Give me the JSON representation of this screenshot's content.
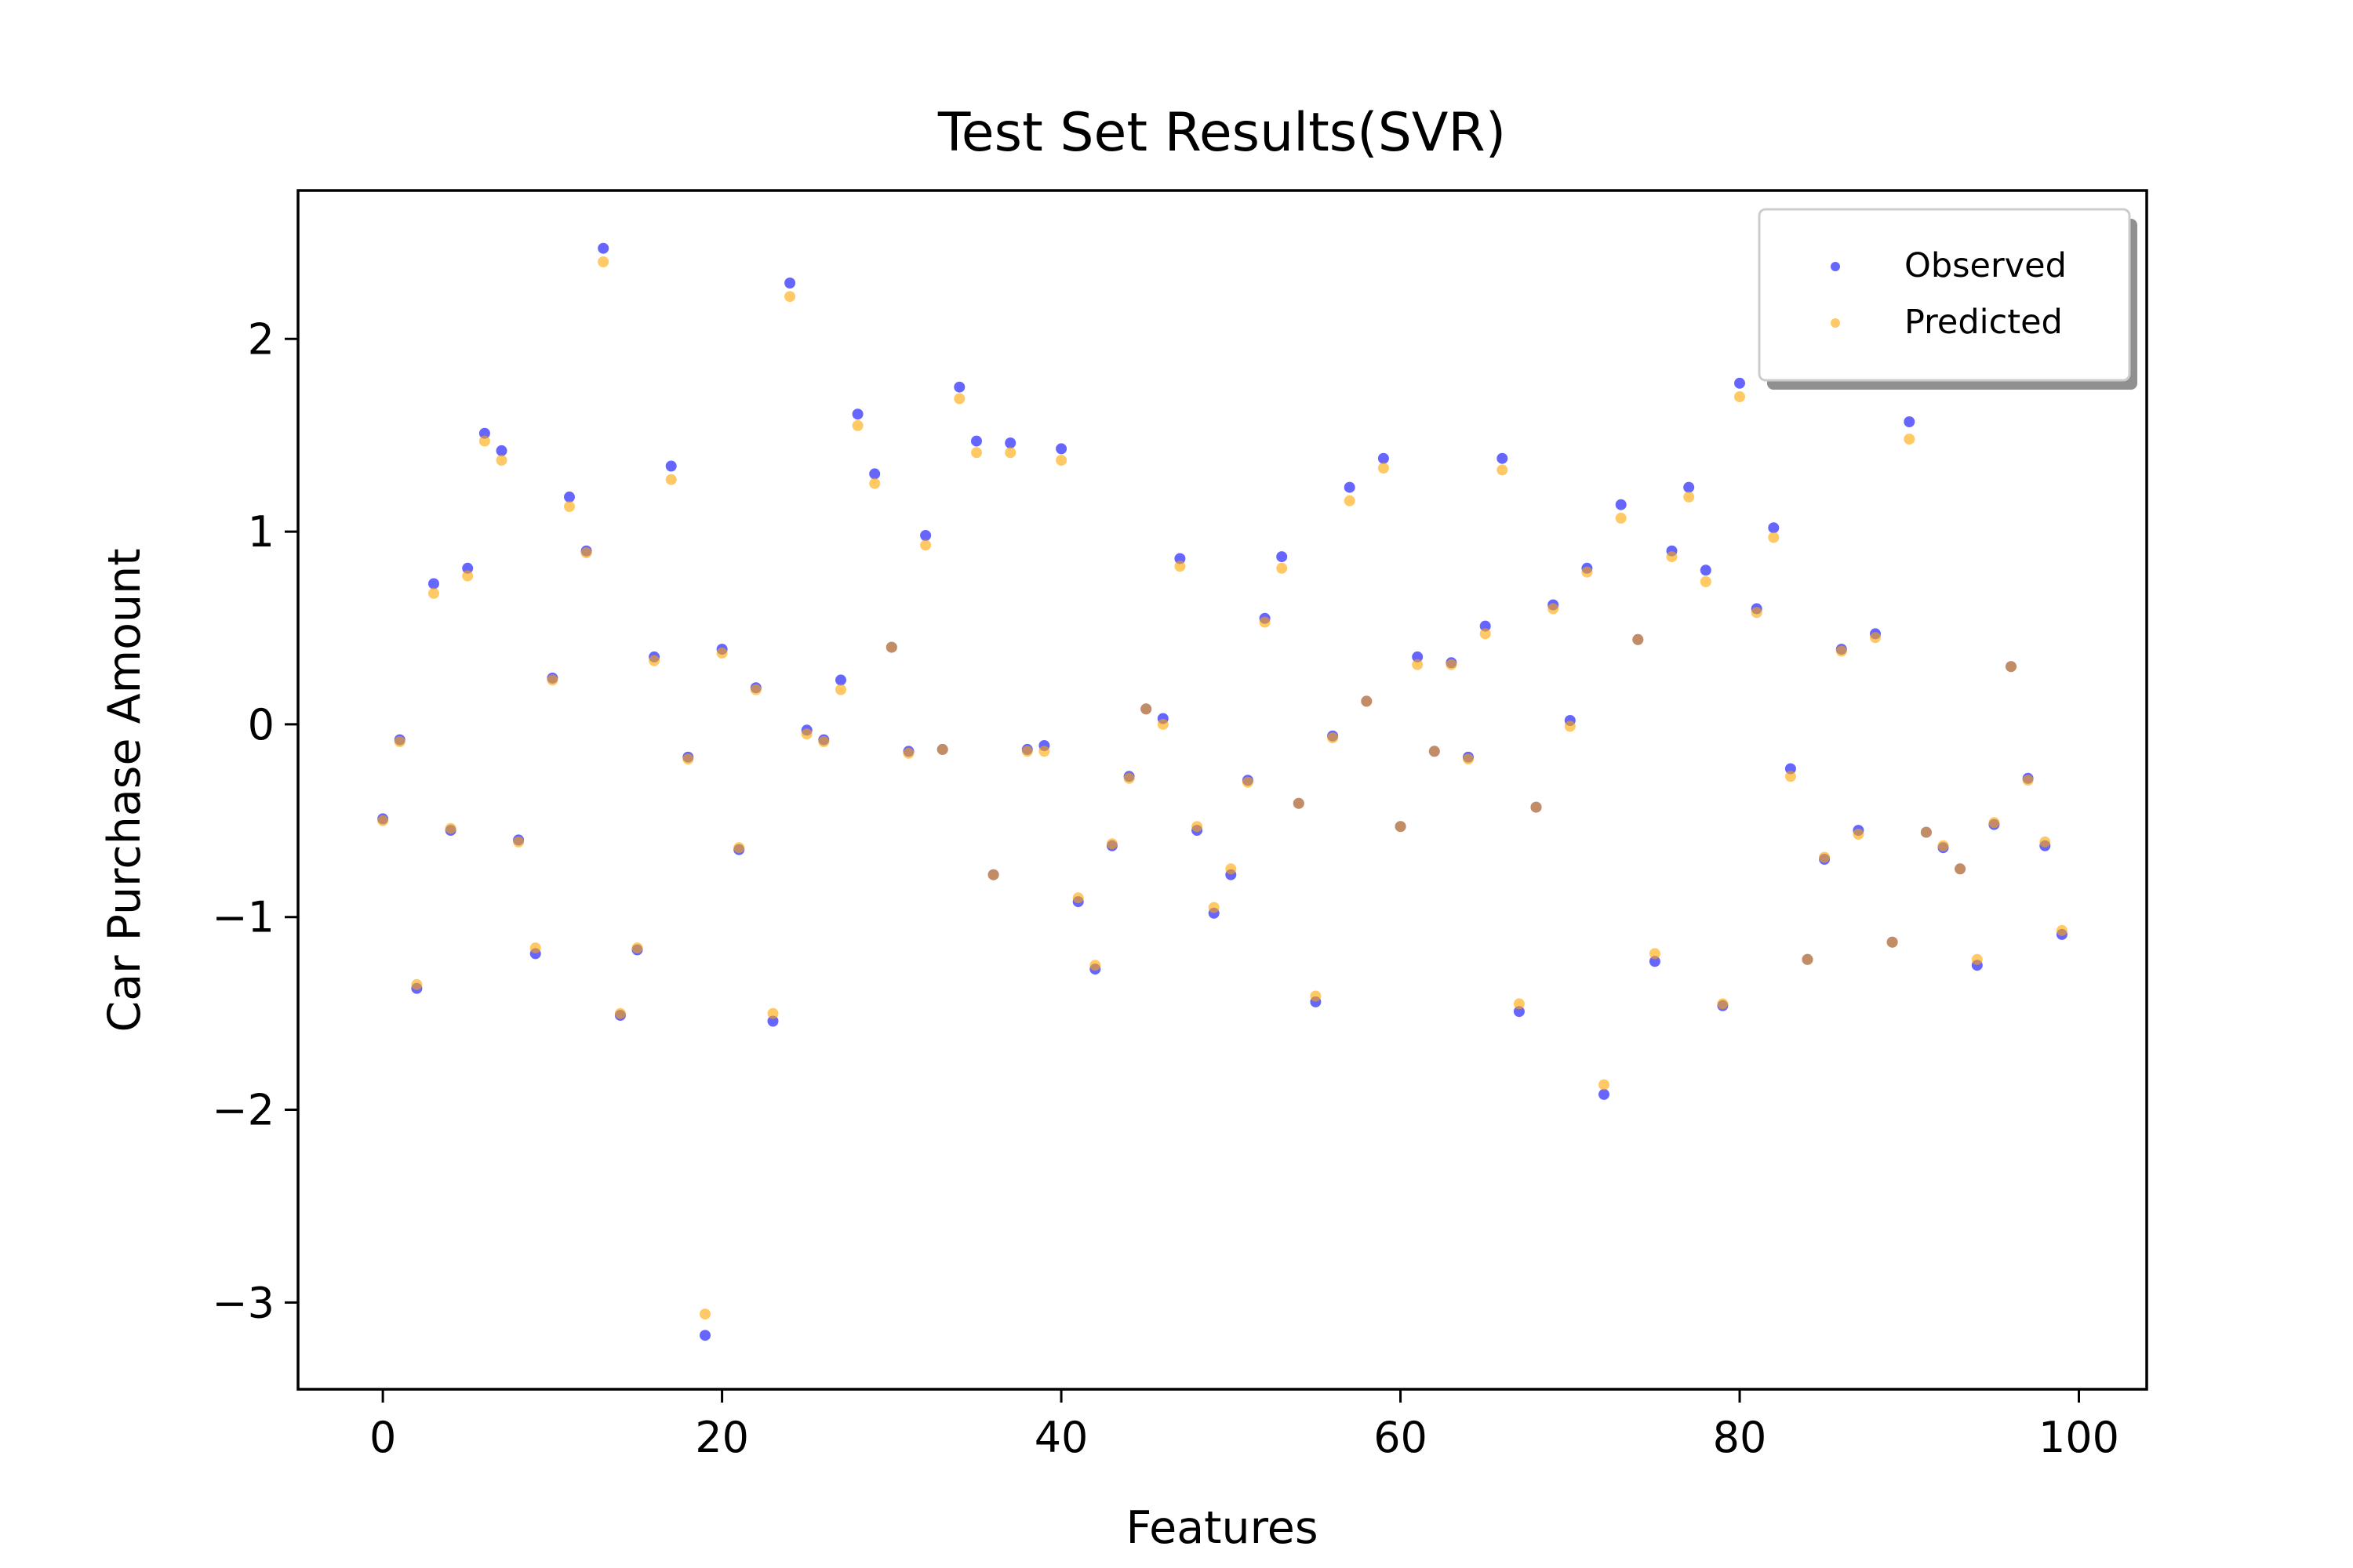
{
  "chart_data": {
    "type": "scatter",
    "title": "Test Set Results(SVR)",
    "xlabel": "Features",
    "ylabel": "Car Purchase Amount",
    "xlim": [
      -5,
      104
    ],
    "ylim": [
      -3.45,
      2.77
    ],
    "xticks": [
      0,
      20,
      40,
      60,
      80,
      100
    ],
    "xtick_labels": [
      "0",
      "20",
      "40",
      "60",
      "80",
      "100"
    ],
    "yticks": [
      -3,
      -2,
      -1,
      0,
      1,
      2
    ],
    "ytick_labels": [
      "−3",
      "−2",
      "−1",
      "0",
      "1",
      "2"
    ],
    "grid": false,
    "legend_position": "top-right",
    "x": [
      0,
      1,
      2,
      3,
      4,
      5,
      6,
      7,
      8,
      9,
      10,
      11,
      12,
      13,
      14,
      15,
      16,
      17,
      18,
      19,
      20,
      21,
      22,
      23,
      24,
      25,
      26,
      27,
      28,
      29,
      30,
      31,
      32,
      33,
      34,
      35,
      36,
      37,
      38,
      39,
      40,
      41,
      42,
      43,
      44,
      45,
      46,
      47,
      48,
      49,
      50,
      51,
      52,
      53,
      54,
      55,
      56,
      57,
      58,
      59,
      60,
      61,
      62,
      63,
      64,
      65,
      66,
      67,
      68,
      69,
      70,
      71,
      72,
      73,
      74,
      75,
      76,
      77,
      78,
      79,
      80,
      81,
      82,
      83,
      84,
      85,
      86,
      87,
      88,
      89,
      90,
      91,
      92,
      93,
      94,
      95,
      96,
      97,
      98,
      99
    ],
    "series": [
      {
        "name": "Observed",
        "color": "#0000ff",
        "values": [
          -0.49,
          -0.08,
          -1.37,
          0.73,
          -0.55,
          0.81,
          1.51,
          1.42,
          -0.6,
          -1.19,
          0.24,
          1.18,
          0.9,
          2.47,
          -1.51,
          -1.17,
          0.35,
          1.34,
          -0.17,
          -3.17,
          0.39,
          -0.65,
          0.19,
          -1.54,
          2.29,
          -0.03,
          -0.08,
          0.23,
          1.61,
          1.3,
          0.4,
          -0.14,
          0.98,
          -0.13,
          1.75,
          1.47,
          -0.78,
          1.46,
          -0.13,
          -0.11,
          1.43,
          -0.92,
          -1.27,
          -0.63,
          -0.27,
          0.08,
          0.03,
          0.86,
          -0.55,
          -0.98,
          -0.78,
          -0.29,
          0.55,
          0.87,
          -0.41,
          -1.44,
          -0.06,
          1.23,
          0.12,
          1.38,
          -0.53,
          0.35,
          -0.14,
          0.32,
          -0.17,
          0.51,
          1.38,
          -1.49,
          -0.43,
          0.62,
          0.02,
          0.81,
          -1.92,
          1.14,
          0.44,
          -1.23,
          0.9,
          1.23,
          0.8,
          -1.46,
          1.77,
          0.6,
          1.02,
          -0.23,
          -1.22,
          -0.7,
          0.39,
          -0.55,
          0.47,
          -1.13,
          1.57,
          -0.56,
          -0.64,
          -0.75,
          -1.25,
          -0.52,
          0.3,
          -0.28,
          -0.63,
          -1.09
        ]
      },
      {
        "name": "Predicted",
        "color": "#ffa500",
        "values": [
          -0.5,
          -0.09,
          -1.35,
          0.68,
          -0.54,
          0.77,
          1.47,
          1.37,
          -0.61,
          -1.16,
          0.23,
          1.13,
          0.89,
          2.4,
          -1.5,
          -1.16,
          0.33,
          1.27,
          -0.18,
          -3.06,
          0.37,
          -0.64,
          0.18,
          -1.5,
          2.22,
          -0.05,
          -0.09,
          0.18,
          1.55,
          1.25,
          0.4,
          -0.15,
          0.93,
          -0.13,
          1.69,
          1.41,
          -0.78,
          1.41,
          -0.14,
          -0.14,
          1.37,
          -0.9,
          -1.25,
          -0.62,
          -0.28,
          0.08,
          0.0,
          0.82,
          -0.53,
          -0.95,
          -0.75,
          -0.3,
          0.53,
          0.81,
          -0.41,
          -1.41,
          -0.07,
          1.16,
          0.12,
          1.33,
          -0.53,
          0.31,
          -0.14,
          0.31,
          -0.18,
          0.47,
          1.32,
          -1.45,
          -0.43,
          0.6,
          -0.01,
          0.79,
          -1.87,
          1.07,
          0.44,
          -1.19,
          0.87,
          1.18,
          0.74,
          -1.45,
          1.7,
          0.58,
          0.97,
          -0.27,
          -1.22,
          -0.69,
          0.38,
          -0.57,
          0.45,
          -1.13,
          1.48,
          -0.56,
          -0.63,
          -0.75,
          -1.22,
          -0.51,
          0.3,
          -0.29,
          -0.61,
          -1.07
        ]
      }
    ]
  }
}
